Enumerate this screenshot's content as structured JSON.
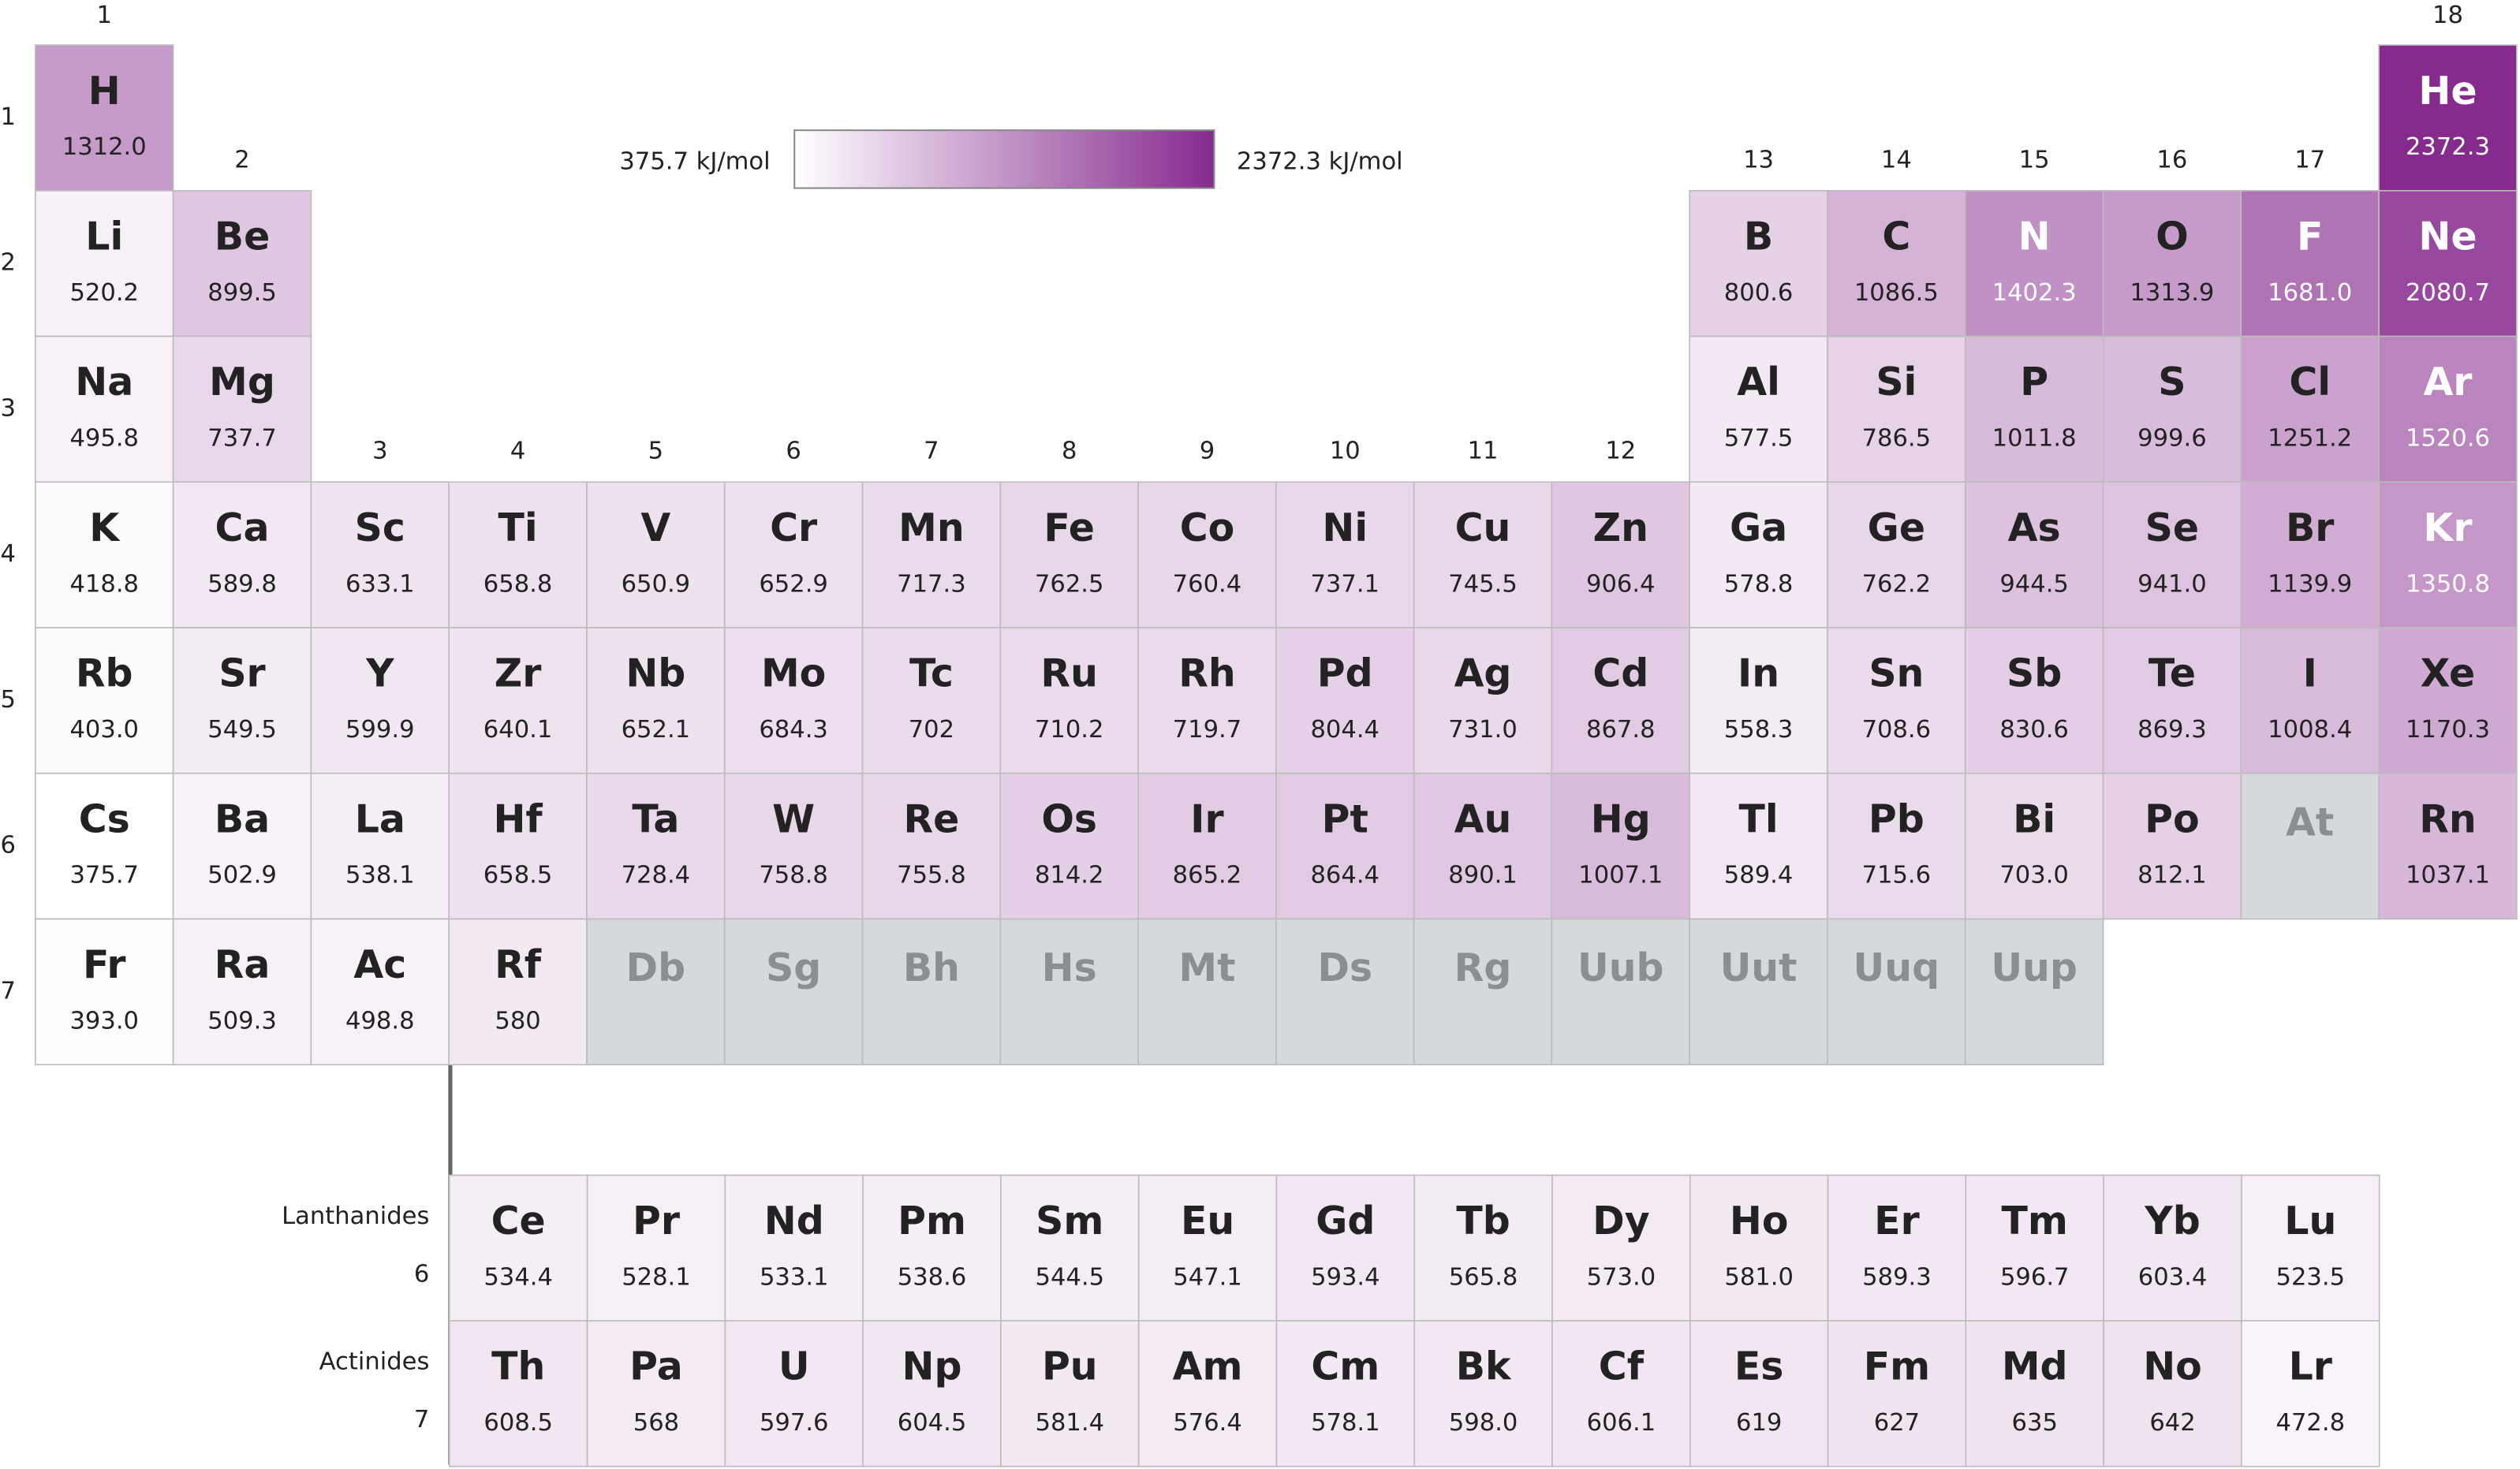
{
  "legend": {
    "min_label": "375.7 kJ/mol",
    "max_label": "2372.3 kJ/mol"
  },
  "group_labels": [
    "1",
    "2",
    "3",
    "4",
    "5",
    "6",
    "7",
    "8",
    "9",
    "10",
    "11",
    "12",
    "13",
    "14",
    "15",
    "16",
    "17",
    "18"
  ],
  "period_labels": [
    "1",
    "2",
    "3",
    "4",
    "5",
    "6",
    "7"
  ],
  "rows": [
    {
      "cells": [
        {
          "symbol": "H",
          "value": "1312.0"
        },
        {
          "symbol": "He",
          "value": "2372.3"
        }
      ]
    },
    {
      "cells": [
        {
          "symbol": "Li",
          "value": "520.2"
        },
        {
          "symbol": "Be",
          "value": "899.5"
        },
        {
          "symbol": "B",
          "value": "800.6"
        },
        {
          "symbol": "C",
          "value": "1086.5"
        },
        {
          "symbol": "N",
          "value": "1402.3"
        },
        {
          "symbol": "O",
          "value": "1313.9"
        },
        {
          "symbol": "F",
          "value": "1681.0"
        },
        {
          "symbol": "Ne",
          "value": "2080.7"
        }
      ]
    },
    {
      "cells": [
        {
          "symbol": "Na",
          "value": "495.8"
        },
        {
          "symbol": "Mg",
          "value": "737.7"
        },
        {
          "symbol": "Al",
          "value": "577.5"
        },
        {
          "symbol": "Si",
          "value": "786.5"
        },
        {
          "symbol": "P",
          "value": "1011.8"
        },
        {
          "symbol": "S",
          "value": "999.6"
        },
        {
          "symbol": "Cl",
          "value": "1251.2"
        },
        {
          "symbol": "Ar",
          "value": "1520.6"
        }
      ]
    },
    {
      "cells": [
        {
          "symbol": "K",
          "value": "418.8"
        },
        {
          "symbol": "Ca",
          "value": "589.8"
        },
        {
          "symbol": "Sc",
          "value": "633.1"
        },
        {
          "symbol": "Ti",
          "value": "658.8"
        },
        {
          "symbol": "V",
          "value": "650.9"
        },
        {
          "symbol": "Cr",
          "value": "652.9"
        },
        {
          "symbol": "Mn",
          "value": "717.3"
        },
        {
          "symbol": "Fe",
          "value": "762.5"
        },
        {
          "symbol": "Co",
          "value": "760.4"
        },
        {
          "symbol": "Ni",
          "value": "737.1"
        },
        {
          "symbol": "Cu",
          "value": "745.5"
        },
        {
          "symbol": "Zn",
          "value": "906.4"
        },
        {
          "symbol": "Ga",
          "value": "578.8"
        },
        {
          "symbol": "Ge",
          "value": "762.2"
        },
        {
          "symbol": "As",
          "value": "944.5"
        },
        {
          "symbol": "Se",
          "value": "941.0"
        },
        {
          "symbol": "Br",
          "value": "1139.9"
        },
        {
          "symbol": "Kr",
          "value": "1350.8"
        }
      ]
    },
    {
      "cells": [
        {
          "symbol": "Rb",
          "value": "403.0"
        },
        {
          "symbol": "Sr",
          "value": "549.5"
        },
        {
          "symbol": "Y",
          "value": "599.9"
        },
        {
          "symbol": "Zr",
          "value": "640.1"
        },
        {
          "symbol": "Nb",
          "value": "652.1"
        },
        {
          "symbol": "Mo",
          "value": "684.3"
        },
        {
          "symbol": "Tc",
          "value": "702"
        },
        {
          "symbol": "Ru",
          "value": "710.2"
        },
        {
          "symbol": "Rh",
          "value": "719.7"
        },
        {
          "symbol": "Pd",
          "value": "804.4"
        },
        {
          "symbol": "Ag",
          "value": "731.0"
        },
        {
          "symbol": "Cd",
          "value": "867.8"
        },
        {
          "symbol": "In",
          "value": "558.3"
        },
        {
          "symbol": "Sn",
          "value": "708.6"
        },
        {
          "symbol": "Sb",
          "value": "830.6"
        },
        {
          "symbol": "Te",
          "value": "869.3"
        },
        {
          "symbol": "I",
          "value": "1008.4"
        },
        {
          "symbol": "Xe",
          "value": "1170.3"
        }
      ]
    },
    {
      "cells": [
        {
          "symbol": "Cs",
          "value": "375.7"
        },
        {
          "symbol": "Ba",
          "value": "502.9"
        },
        {
          "symbol": "La",
          "value": "538.1"
        },
        {
          "symbol": "Hf",
          "value": "658.5"
        },
        {
          "symbol": "Ta",
          "value": "728.4"
        },
        {
          "symbol": "W",
          "value": "758.8"
        },
        {
          "symbol": "Re",
          "value": "755.8"
        },
        {
          "symbol": "Os",
          "value": "814.2"
        },
        {
          "symbol": "Ir",
          "value": "865.2"
        },
        {
          "symbol": "Pt",
          "value": "864.4"
        },
        {
          "symbol": "Au",
          "value": "890.1"
        },
        {
          "symbol": "Hg",
          "value": "1007.1"
        },
        {
          "symbol": "Tl",
          "value": "589.4"
        },
        {
          "symbol": "Pb",
          "value": "715.6"
        },
        {
          "symbol": "Bi",
          "value": "703.0"
        },
        {
          "symbol": "Po",
          "value": "812.1"
        },
        {
          "symbol": "At",
          "value": null
        },
        {
          "symbol": "Rn",
          "value": "1037.1"
        }
      ]
    },
    {
      "cells": [
        {
          "symbol": "Fr",
          "value": "393.0"
        },
        {
          "symbol": "Ra",
          "value": "509.3"
        },
        {
          "symbol": "Ac",
          "value": "498.8"
        },
        {
          "symbol": "Rf",
          "value": "580"
        },
        {
          "symbol": "Db",
          "value": null
        },
        {
          "symbol": "Sg",
          "value": null
        },
        {
          "symbol": "Bh",
          "value": null
        },
        {
          "symbol": "Hs",
          "value": null
        },
        {
          "symbol": "Mt",
          "value": null
        },
        {
          "symbol": "Ds",
          "value": null
        },
        {
          "symbol": "Rg",
          "value": null
        },
        {
          "symbol": "Uub",
          "value": null
        },
        {
          "symbol": "Uut",
          "value": null
        },
        {
          "symbol": "Uuq",
          "value": null
        },
        {
          "symbol": "Uup",
          "value": null
        }
      ]
    }
  ],
  "f_block": [
    {
      "name": "Lanthanides",
      "period": "6",
      "cells": [
        {
          "symbol": "Ce",
          "value": "534.4"
        },
        {
          "symbol": "Pr",
          "value": "528.1"
        },
        {
          "symbol": "Nd",
          "value": "533.1"
        },
        {
          "symbol": "Pm",
          "value": "538.6"
        },
        {
          "symbol": "Sm",
          "value": "544.5"
        },
        {
          "symbol": "Eu",
          "value": "547.1"
        },
        {
          "symbol": "Gd",
          "value": "593.4"
        },
        {
          "symbol": "Tb",
          "value": "565.8"
        },
        {
          "symbol": "Dy",
          "value": "573.0"
        },
        {
          "symbol": "Ho",
          "value": "581.0"
        },
        {
          "symbol": "Er",
          "value": "589.3"
        },
        {
          "symbol": "Tm",
          "value": "596.7"
        },
        {
          "symbol": "Yb",
          "value": "603.4"
        },
        {
          "symbol": "Lu",
          "value": "523.5"
        }
      ]
    },
    {
      "name": "Actinides",
      "period": "7",
      "cells": [
        {
          "symbol": "Th",
          "value": "608.5"
        },
        {
          "symbol": "Pa",
          "value": "568"
        },
        {
          "symbol": "U",
          "value": "597.6"
        },
        {
          "symbol": "Np",
          "value": "604.5"
        },
        {
          "symbol": "Pu",
          "value": "581.4"
        },
        {
          "symbol": "Am",
          "value": "576.4"
        },
        {
          "symbol": "Cm",
          "value": "578.1"
        },
        {
          "symbol": "Bk",
          "value": "598.0"
        },
        {
          "symbol": "Cf",
          "value": "606.1"
        },
        {
          "symbol": "Es",
          "value": "619"
        },
        {
          "symbol": "Fm",
          "value": "627"
        },
        {
          "symbol": "Md",
          "value": "635"
        },
        {
          "symbol": "No",
          "value": "642"
        },
        {
          "symbol": "Lr",
          "value": "472.8"
        }
      ]
    }
  ]
}
